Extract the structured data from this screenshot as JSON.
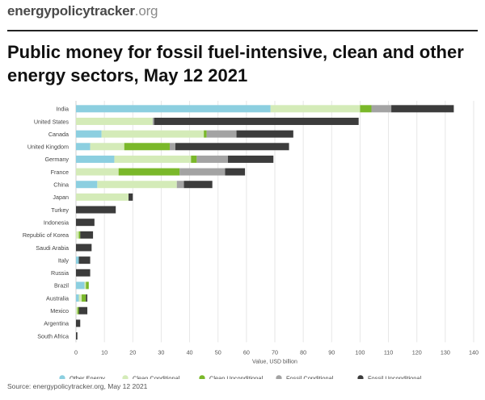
{
  "header": {
    "brand_name": "energypolicytracker",
    "brand_tld": ".org",
    "title": "Public money for fossil fuel-intensive, clean and other energy sectors, May 12 2021"
  },
  "chart_data": {
    "type": "bar",
    "orientation": "horizontal",
    "stacked": true,
    "categories": [
      "India",
      "United States",
      "Canada",
      "United Kingdom",
      "Germany",
      "France",
      "China",
      "Japan",
      "Turkey",
      "Indonesia",
      "Republic of Korea",
      "Saudi Arabia",
      "Italy",
      "Russia",
      "Brazil",
      "Australia",
      "Mexico",
      "Argentina",
      "South Africa"
    ],
    "series": [
      {
        "name": "Other Energy",
        "color": "#8ccfe0",
        "values": [
          68.5,
          0,
          9,
          5,
          13.5,
          0,
          7.5,
          0,
          0,
          0,
          0,
          0,
          1,
          0,
          3,
          1,
          0,
          0,
          0
        ]
      },
      {
        "name": "Clean Conditional",
        "color": "#d4ebb8",
        "values": [
          31.5,
          27,
          36,
          12,
          27,
          15,
          28,
          18.5,
          0,
          0,
          1,
          0,
          0,
          0,
          0.5,
          1,
          0.5,
          0,
          0
        ]
      },
      {
        "name": "Clean Unconditional",
        "color": "#7ab82a",
        "values": [
          4,
          0,
          1,
          16,
          2,
          21.5,
          0,
          0,
          0,
          0,
          0.5,
          0,
          0,
          0,
          1,
          1.5,
          0.5,
          0,
          0
        ]
      },
      {
        "name": "Fossil Conditional",
        "color": "#a3a3a3",
        "values": [
          7,
          0.5,
          10.5,
          2,
          11,
          16,
          2.5,
          0,
          0,
          0,
          0,
          0,
          0,
          0,
          0,
          0,
          0,
          0,
          0
        ]
      },
      {
        "name": "Fossil Unconditional",
        "color": "#3c3c3c",
        "values": [
          22,
          72,
          20,
          40,
          16,
          7,
          10,
          1.5,
          14,
          6.5,
          4.5,
          5.5,
          4,
          5,
          0,
          0.5,
          3,
          1.5,
          0.5
        ]
      }
    ],
    "xlabel": "Value, USD billion",
    "ylabel": "",
    "xlim": [
      0,
      140
    ],
    "xticks": [
      0,
      10,
      20,
      30,
      40,
      50,
      60,
      70,
      80,
      90,
      100,
      110,
      120,
      130,
      140
    ],
    "grid": true,
    "legend_position": "bottom"
  },
  "footer": {
    "source": "Source: energypolicytracker.org, May 12 2021"
  }
}
